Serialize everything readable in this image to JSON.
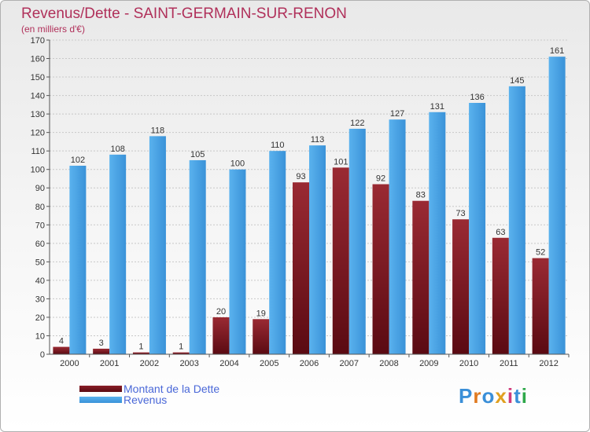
{
  "title": "Revenus/Dette - SAINT-GERMAIN-SUR-RENON",
  "subtitle": "(en milliers d'€)",
  "logo_text": "Proxiti",
  "colors": {
    "dette": "#7a1520",
    "revenus": "#3d9be0",
    "title": "#b0305a",
    "legend_text": "#4a68d8"
  },
  "chart_data": {
    "type": "bar",
    "categories": [
      "2000",
      "2001",
      "2002",
      "2003",
      "2004",
      "2005",
      "2006",
      "2007",
      "2008",
      "2009",
      "2010",
      "2011",
      "2012"
    ],
    "series": [
      {
        "name": "Montant de la Dette",
        "values": [
          4,
          3,
          1,
          1,
          20,
          19,
          93,
          101,
          92,
          83,
          73,
          63,
          52
        ]
      },
      {
        "name": "Revenus",
        "values": [
          102,
          108,
          118,
          105,
          100,
          110,
          113,
          122,
          127,
          131,
          136,
          145,
          161
        ]
      }
    ],
    "ylim": [
      0,
      170
    ],
    "yticks": [
      0,
      10,
      20,
      30,
      40,
      50,
      60,
      70,
      80,
      90,
      100,
      110,
      120,
      130,
      140,
      150,
      160,
      170
    ],
    "grid": true,
    "legend_position": "bottom-left"
  }
}
